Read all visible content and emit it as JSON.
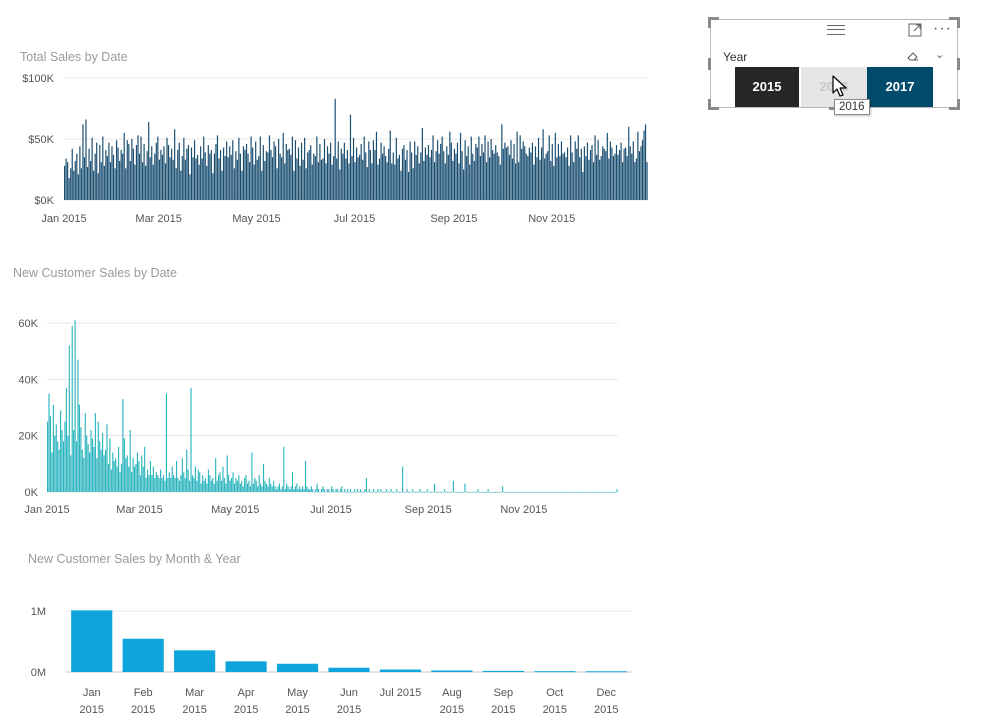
{
  "chart_data": [
    {
      "type": "bar",
      "title": "Total Sales by Date",
      "color": "#1b4f72",
      "y_ticks": [
        "$0K",
        "$50K",
        "$100K"
      ],
      "ylim": [
        0,
        100000
      ],
      "x_tick_labels": [
        "Jan 2015",
        "Mar 2015",
        "May 2015",
        "Jul 2015",
        "Sep 2015",
        "Nov 2015"
      ],
      "x_range": [
        "2015-01-01",
        "2015-12-31"
      ],
      "grid": true,
      "values": [
        28000,
        34000,
        31000,
        18000,
        26000,
        42000,
        24000,
        32000,
        38000,
        21000,
        44000,
        26000,
        62000,
        35000,
        66000,
        27000,
        42000,
        32000,
        51000,
        24000,
        38000,
        47000,
        22000,
        45000,
        31000,
        52000,
        28000,
        41000,
        36000,
        47000,
        31000,
        44000,
        37000,
        26000,
        49000,
        43000,
        32000,
        41000,
        38000,
        55000,
        26000,
        49000,
        46000,
        32000,
        50000,
        42000,
        29000,
        45000,
        53000,
        38000,
        52000,
        31000,
        46000,
        28000,
        40000,
        64000,
        35000,
        44000,
        29000,
        38000,
        47000,
        52000,
        33000,
        41000,
        37000,
        44000,
        30000,
        51000,
        45000,
        35000,
        42000,
        33000,
        58000,
        26000,
        41000,
        47000,
        24000,
        36000,
        51000,
        33000,
        42000,
        45000,
        21000,
        43000,
        35000,
        49000,
        34000,
        37000,
        29000,
        44000,
        34000,
        52000,
        39000,
        28000,
        45000,
        38000,
        41000,
        22000,
        38000,
        46000,
        53000,
        34000,
        41000,
        24000,
        43000,
        36000,
        48000,
        35000,
        44000,
        37000,
        49000,
        26000,
        40000,
        33000,
        51000,
        38000,
        24000,
        44000,
        41000,
        46000,
        38000,
        31000,
        52000,
        43000,
        29000,
        48000,
        33000,
        36000,
        52000,
        24000,
        45000,
        32000,
        40000,
        39000,
        53000,
        41000,
        35000,
        48000,
        44000,
        26000,
        50000,
        38000,
        35000,
        55000,
        30000,
        46000,
        41000,
        42000,
        37000,
        52000,
        24000,
        49000,
        34000,
        43000,
        28000,
        47000,
        33000,
        51000,
        26000,
        39000,
        41000,
        45000,
        29000,
        38000,
        36000,
        52000,
        31000,
        46000,
        33000,
        34000,
        50000,
        30000,
        44000,
        38000,
        47000,
        29000,
        36000,
        83000,
        34000,
        48000,
        25000,
        42000,
        38000,
        47000,
        34000,
        41000,
        30000,
        70000,
        36000,
        51000,
        31000,
        43000,
        35000,
        37000,
        46000,
        33000,
        52000,
        39000,
        27000,
        48000,
        41000,
        30000,
        49000,
        41000,
        56000,
        29000,
        34000,
        47000,
        38000,
        44000,
        36000,
        31000,
        42000,
        57000,
        30000,
        39000,
        29000,
        51000,
        34000,
        37000,
        24000,
        42000,
        45000,
        33000,
        41000,
        23000,
        48000,
        39000,
        26000,
        48000,
        37000,
        44000,
        30000,
        39000,
        59000,
        32000,
        43000,
        37000,
        45000,
        35000,
        41000,
        53000,
        31000,
        40000,
        49000,
        38000,
        46000,
        52000,
        40000,
        30000,
        44000,
        37000,
        56000,
        47000,
        32000,
        42000,
        38000,
        47000,
        30000,
        55000,
        40000,
        25000,
        49000,
        36000,
        44000,
        29000,
        52000,
        38000,
        32000,
        46000,
        43000,
        52000,
        36000,
        46000,
        39000,
        53000,
        31000,
        48000,
        35000,
        50000,
        41000,
        38000,
        45000,
        39000,
        36000,
        29000,
        62000,
        42000,
        47000,
        43000,
        44000,
        37000,
        49000,
        34000,
        46000,
        30000,
        56000,
        31000,
        53000,
        42000,
        48000,
        44000,
        38000,
        36000,
        43000,
        39000,
        47000,
        29000,
        44000,
        35000,
        51000,
        33000,
        43000,
        58000,
        34000,
        38000,
        40000,
        53000,
        32000,
        46000,
        28000,
        55000,
        35000,
        46000,
        36000,
        48000,
        38000,
        39000,
        35000,
        43000,
        28000,
        53000,
        39000,
        31000,
        48000,
        42000,
        53000,
        35000,
        42000,
        23000,
        44000,
        36000,
        47000,
        33000,
        41000,
        45000,
        31000,
        53000,
        37000,
        49000,
        33000,
        36000,
        44000,
        42000,
        40000,
        55000,
        34000,
        48000,
        43000,
        36000,
        38000,
        45000,
        37000,
        41000,
        47000,
        31000,
        42000,
        43000,
        36000,
        60000,
        44000,
        38000,
        48000,
        31000,
        34000,
        56000,
        40000,
        44000,
        49000,
        57000,
        62000,
        31000
      ]
    },
    {
      "type": "bar",
      "title": "New Customer Sales by Date",
      "color": "#2ab4be",
      "y_ticks": [
        "0K",
        "20K",
        "40K",
        "60K"
      ],
      "ylim": [
        0,
        60000
      ],
      "x_tick_labels": [
        "Jan 2015",
        "Mar 2015",
        "May 2015",
        "Jul 2015",
        "Sep 2015",
        "Nov 2015"
      ],
      "x_range": [
        "2015-01-01",
        "2015-12-31"
      ],
      "grid": true,
      "values": [
        25000,
        35000,
        27000,
        14000,
        31000,
        20000,
        24000,
        18000,
        15000,
        29000,
        22000,
        18000,
        25000,
        37000,
        20000,
        52000,
        13000,
        59000,
        22000,
        61000,
        18000,
        47000,
        31000,
        23000,
        15000,
        12000,
        28000,
        20000,
        17000,
        14000,
        22000,
        19000,
        16000,
        28000,
        12000,
        25000,
        18000,
        15000,
        21000,
        13000,
        15000,
        24000,
        10000,
        19000,
        8000,
        14000,
        11000,
        12000,
        9000,
        16000,
        7000,
        10000,
        33000,
        19000,
        12000,
        13000,
        9000,
        22000,
        7000,
        12000,
        9000,
        10000,
        14000,
        11000,
        6000,
        13000,
        9000,
        16000,
        5000,
        8000,
        6000,
        11000,
        6000,
        9000,
        5000,
        7000,
        6000,
        5000,
        8000,
        5000,
        6000,
        4000,
        35000,
        5000,
        7000,
        5000,
        9000,
        6000,
        5000,
        11000,
        5000,
        4000,
        6000,
        12000,
        7000,
        5000,
        15000,
        8000,
        4000,
        37000,
        6000,
        5000,
        9000,
        4000,
        8000,
        7000,
        3000,
        6000,
        4000,
        5000,
        3000,
        8000,
        6000,
        4000,
        5000,
        3000,
        12000,
        4000,
        6000,
        7000,
        4000,
        9000,
        5000,
        3000,
        13000,
        6000,
        4000,
        5000,
        7000,
        3000,
        5000,
        4000,
        6000,
        3000,
        4000,
        2000,
        5000,
        6000,
        3000,
        4000,
        2000,
        14000,
        3000,
        5000,
        4000,
        2000,
        6000,
        3000,
        2000,
        10000,
        4000,
        3000,
        2000,
        5000,
        3000,
        2000,
        4000,
        2000,
        1000,
        2000,
        3000,
        1000,
        2000,
        16000,
        1000,
        3000,
        2000,
        1000,
        2000,
        7000,
        1000,
        2000,
        3000,
        1000,
        2000,
        1000,
        2000,
        1000,
        11000,
        2000,
        1000,
        1000,
        2000,
        1000,
        0,
        1000,
        3000,
        1000,
        0,
        1000,
        2000,
        1000,
        0,
        1000,
        1000,
        0,
        2000,
        1000,
        0,
        1000,
        1000,
        0,
        1000,
        2000,
        0,
        1000,
        0,
        1000,
        0,
        1000,
        0,
        0,
        1000,
        0,
        1000,
        0,
        1000,
        0,
        0,
        1000,
        5000,
        0,
        1000,
        0,
        0,
        1000,
        0,
        0,
        1000,
        0,
        1000,
        0,
        0,
        0,
        1000,
        0,
        0,
        1000,
        0,
        0,
        0,
        1000,
        0,
        0,
        0,
        9000,
        0,
        0,
        1000,
        0,
        0,
        0,
        1000,
        0,
        0,
        0,
        0,
        1000,
        0,
        0,
        0,
        0,
        1000,
        0,
        0,
        0,
        0,
        3000,
        0,
        0,
        0,
        0,
        0,
        0,
        1000,
        0,
        0,
        0,
        0,
        0,
        4000,
        0,
        0,
        0,
        0,
        0,
        0,
        0,
        3000,
        0,
        0,
        0,
        0,
        0,
        0,
        0,
        0,
        1000,
        0,
        0,
        0,
        0,
        0,
        0,
        1000,
        0,
        0,
        0,
        0,
        0,
        0,
        0,
        0,
        0,
        2000,
        0,
        0,
        0,
        0,
        0,
        0,
        0,
        0,
        0,
        0,
        0,
        0,
        0,
        0,
        0,
        0,
        0,
        0,
        0,
        0,
        0,
        0,
        0,
        0,
        0,
        0,
        0,
        0,
        0,
        0,
        0,
        0,
        0,
        0,
        0,
        0,
        0,
        0,
        0,
        0,
        0,
        0,
        0,
        0,
        0,
        0,
        0,
        0,
        0,
        0,
        0,
        0,
        0,
        0,
        0,
        0,
        0,
        0,
        0,
        0,
        0,
        0,
        0,
        0,
        0,
        0,
        0,
        0,
        0,
        0,
        0,
        0,
        0,
        0,
        0,
        0,
        0,
        0,
        1000
      ]
    },
    {
      "type": "bar",
      "title": "New Customer Sales by Month & Year",
      "color": "#0ea5dc",
      "y_ticks": [
        "0M",
        "1M"
      ],
      "ylim": [
        0,
        1000000
      ],
      "grid": true,
      "categories": [
        {
          "month": "Jan",
          "year": "2015"
        },
        {
          "month": "Feb",
          "year": "2015"
        },
        {
          "month": "Mar",
          "year": "2015"
        },
        {
          "month": "Apr",
          "year": "2015"
        },
        {
          "month": "May",
          "year": "2015"
        },
        {
          "month": "Jun",
          "year": "2015"
        },
        {
          "month": "Jul 2015",
          "year": ""
        },
        {
          "month": "Aug",
          "year": "2015"
        },
        {
          "month": "Sep",
          "year": "2015"
        },
        {
          "month": "Oct",
          "year": "2015"
        },
        {
          "month": "Dec",
          "year": "2015"
        }
      ],
      "values": [
        1010000,
        545000,
        355000,
        175000,
        135000,
        70000,
        40000,
        25000,
        18000,
        14000,
        12000
      ]
    }
  ],
  "slicer": {
    "label": "Year",
    "options": [
      "2015",
      "2016",
      "2017"
    ],
    "tooltip": "2016",
    "colors": {
      "dark": "#262626",
      "hover": "#e6e6e6",
      "selected": "#034b6b"
    },
    "icons": [
      "drag-handle-icon",
      "focus-mode-icon",
      "more-options-icon",
      "eraser-icon",
      "chevron-down-icon",
      "mouse-cursor-icon"
    ]
  }
}
